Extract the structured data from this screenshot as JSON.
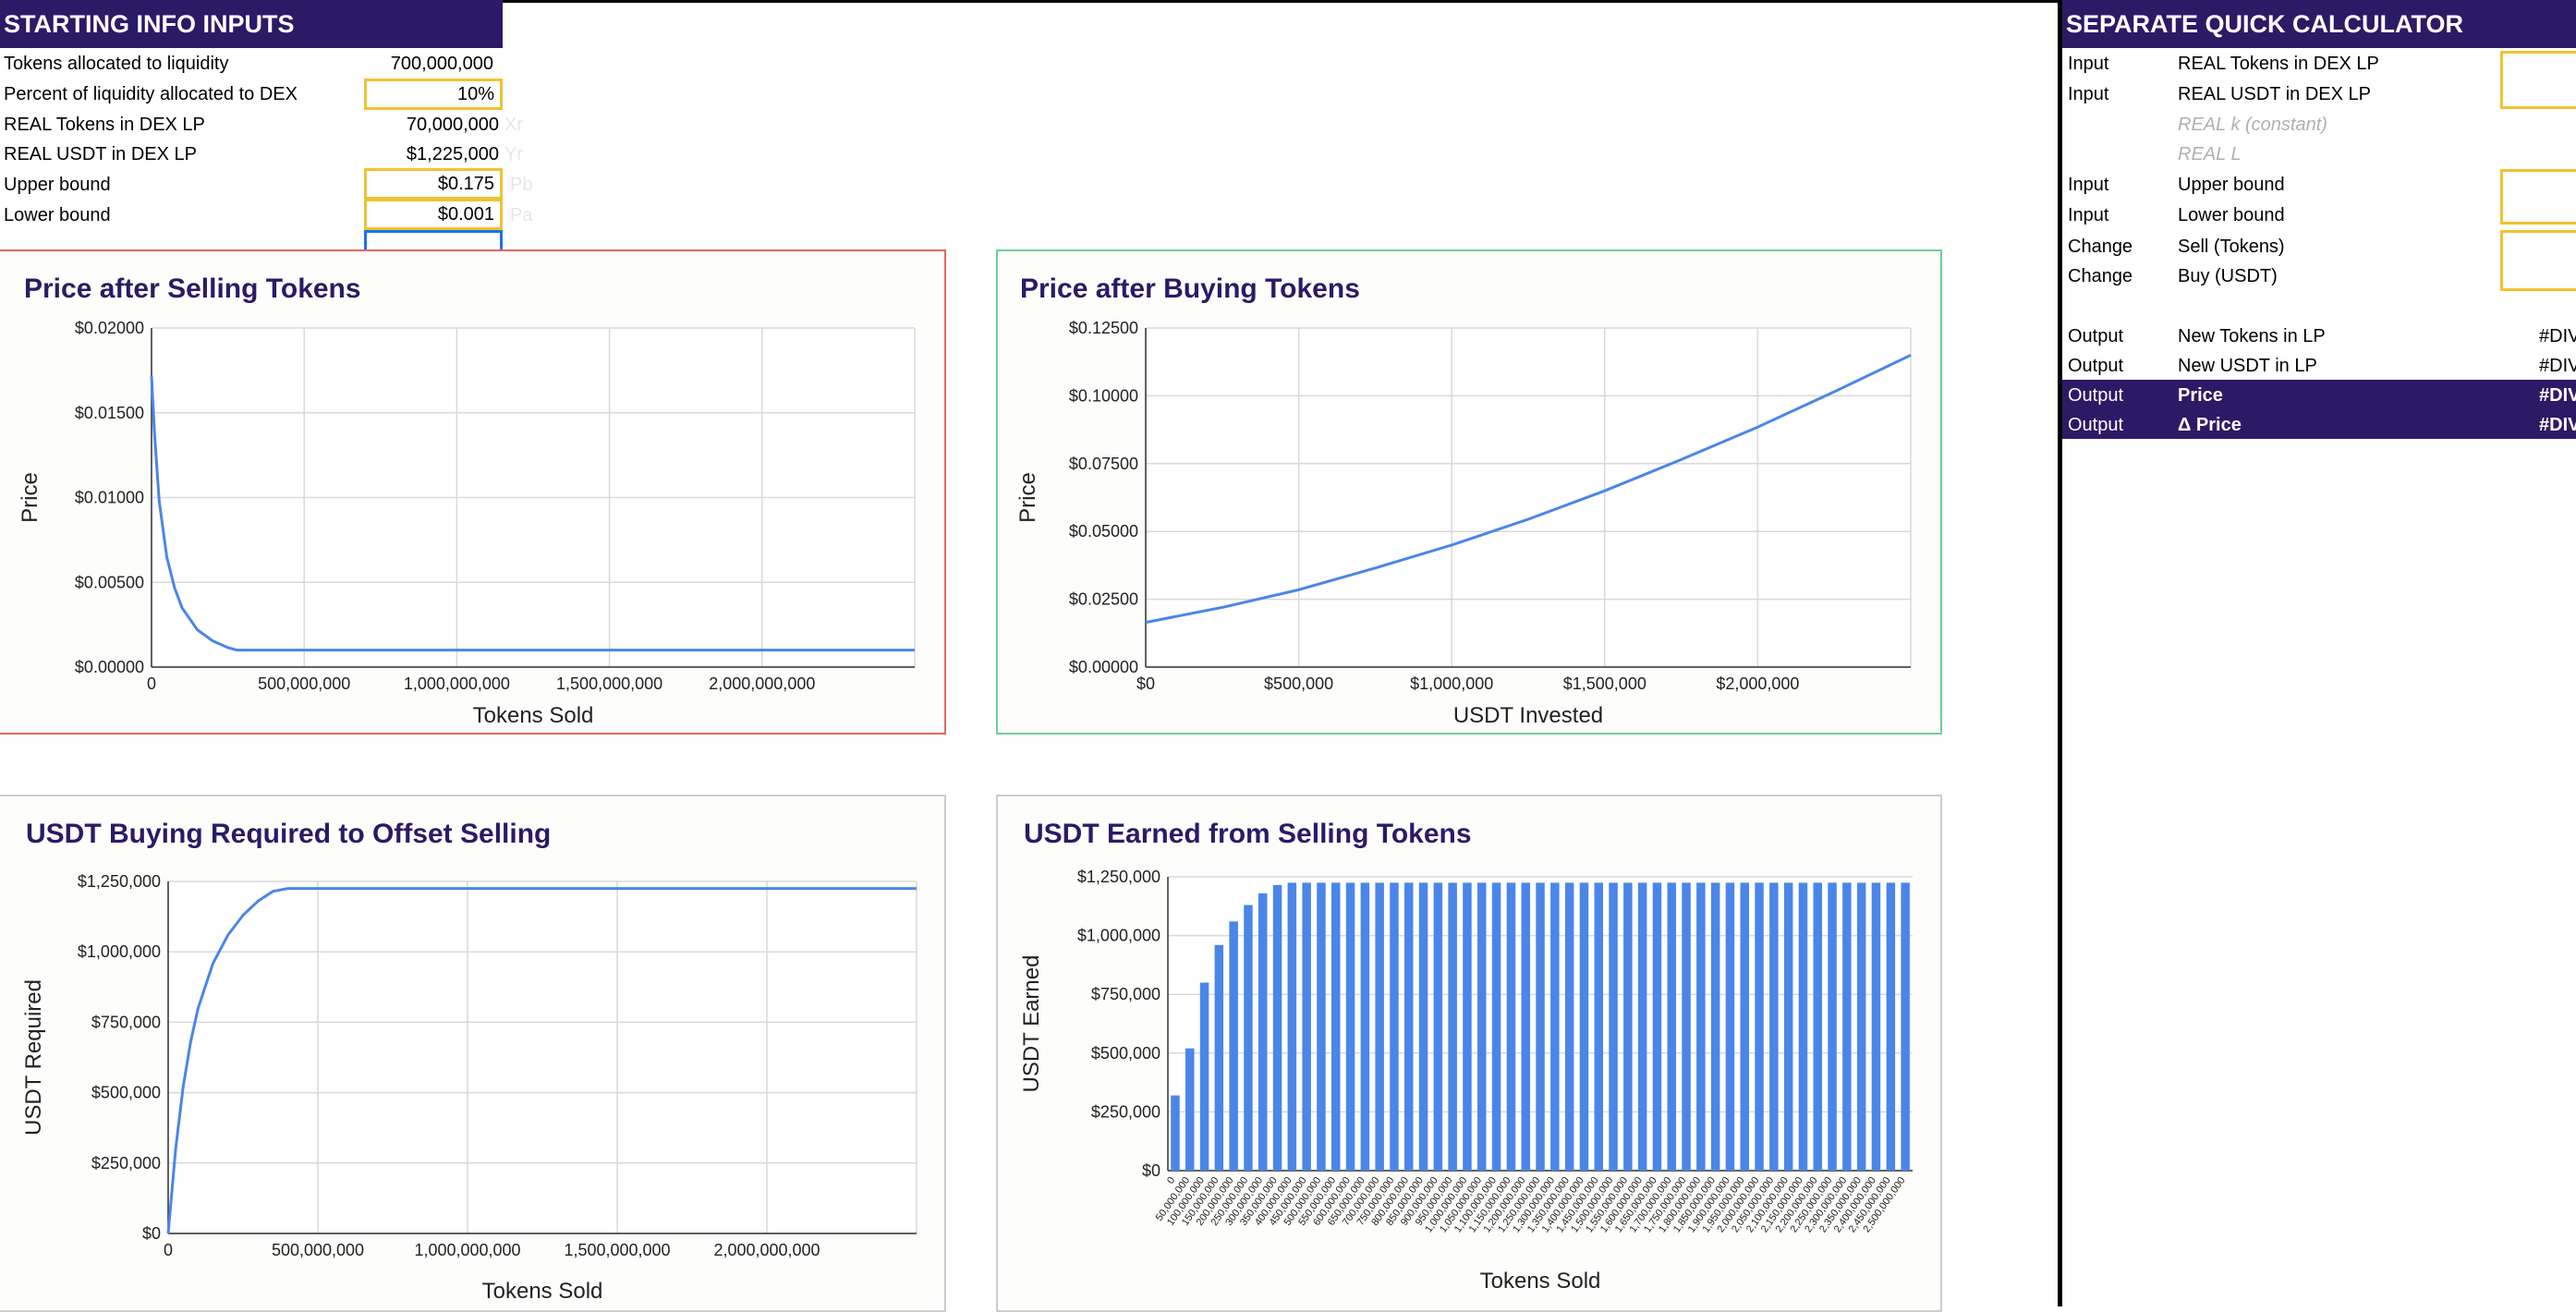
{
  "left_panel": {
    "title": "STARTING INFO INPUTS",
    "rows": [
      {
        "label": "Tokens allocated to liquidity",
        "value": "700,000,000",
        "tag": ""
      },
      {
        "label": "Percent of liquidity allocated to DEX",
        "value": "10%",
        "tag": ""
      },
      {
        "label": "REAL Tokens in DEX LP",
        "value": "70,000,000",
        "tag": "Xr"
      },
      {
        "label": "REAL USDT in DEX LP",
        "value": "$1,225,000",
        "tag": "Yr"
      },
      {
        "label": "Upper bound",
        "value": "$0.175",
        "tag": "Pb"
      },
      {
        "label": "Lower bound",
        "value": "$0.001",
        "tag": "Pa"
      }
    ]
  },
  "right_panel": {
    "title": "SEPARATE QUICK CALCULATOR",
    "rows": [
      {
        "type": "Input",
        "label": "REAL Tokens in DEX LP",
        "value": ""
      },
      {
        "type": "Input",
        "label": "REAL USDT in DEX LP",
        "value": ""
      },
      {
        "type": "",
        "label": "REAL k (constant)",
        "value": ""
      },
      {
        "type": "",
        "label": "REAL L",
        "value": ""
      },
      {
        "type": "Input",
        "label": "Upper bound",
        "value": ""
      },
      {
        "type": "Input",
        "label": "Lower bound",
        "value": ""
      },
      {
        "type": "Change",
        "label": "Sell (Tokens)",
        "value": ""
      },
      {
        "type": "Change",
        "label": "Buy (USDT)",
        "value": ""
      },
      {
        "type": "Output",
        "label": "New Tokens in LP",
        "value": "#DIV"
      },
      {
        "type": "Output",
        "label": "New USDT in LP",
        "value": "#DIV"
      },
      {
        "type": "Output",
        "label": "Price",
        "value": "#DIV"
      },
      {
        "type": "Output",
        "label": "Δ  Price",
        "value": "#DIV"
      }
    ]
  },
  "colors": {
    "header_bg": "#2c1a66",
    "input_border": "#f1c232",
    "line": "#4a86e8",
    "chart1_border": "#e06666",
    "chart2_border": "#6ccf9a"
  },
  "chart_data": [
    {
      "type": "line",
      "title": "Price after Selling Tokens",
      "xlabel": "Tokens Sold",
      "ylabel": "Price",
      "xlim": [
        0,
        2500000000
      ],
      "ylim": [
        0,
        0.02
      ],
      "x_ticks": [
        0,
        500000000,
        1000000000,
        1500000000,
        2000000000
      ],
      "x_tick_labels": [
        "0",
        "500,000,000",
        "1,000,000,000",
        "1,500,000,000",
        "2,000,000,000"
      ],
      "y_ticks": [
        0,
        0.005,
        0.01,
        0.015,
        0.02
      ],
      "y_tick_labels": [
        "$0.00000",
        "$0.00500",
        "$0.01000",
        "$0.01500",
        "$0.02000"
      ],
      "x": [
        0,
        10000000,
        25000000,
        50000000,
        75000000,
        100000000,
        150000000,
        200000000,
        250000000,
        280000000,
        500000000,
        1000000000,
        1500000000,
        2000000000,
        2500000000
      ],
      "y": [
        0.0172,
        0.0137,
        0.0098,
        0.0065,
        0.0047,
        0.0035,
        0.0022,
        0.00155,
        0.00115,
        0.001,
        0.001,
        0.001,
        0.001,
        0.001,
        0.001
      ],
      "grid": true
    },
    {
      "type": "line",
      "title": "Price after Buying Tokens",
      "xlabel": "USDT Invested",
      "ylabel": "Price",
      "xlim": [
        0,
        2500000
      ],
      "ylim": [
        0,
        0.125
      ],
      "x_ticks": [
        0,
        500000,
        1000000,
        1500000,
        2000000
      ],
      "x_tick_labels": [
        "$0",
        "$500,000",
        "$1,000,000",
        "$1,500,000",
        "$2,000,000"
      ],
      "y_ticks": [
        0,
        0.025,
        0.05,
        0.075,
        0.1,
        0.125
      ],
      "y_tick_labels": [
        "$0.00000",
        "$0.02500",
        "$0.05000",
        "$0.07500",
        "$0.10000",
        "$0.12500"
      ],
      "x": [
        0,
        250000,
        500000,
        750000,
        1000000,
        1250000,
        1500000,
        1750000,
        2000000,
        2250000,
        2500000
      ],
      "y": [
        0.0165,
        0.022,
        0.0285,
        0.0365,
        0.045,
        0.0545,
        0.065,
        0.0765,
        0.0885,
        0.1015,
        0.115
      ],
      "grid": true
    },
    {
      "type": "line",
      "title": "USDT Buying Required to Offset Selling",
      "xlabel": "Tokens Sold",
      "ylabel": "USDT Required",
      "xlim": [
        0,
        2500000000
      ],
      "ylim": [
        0,
        1250000
      ],
      "x_ticks": [
        0,
        500000000,
        1000000000,
        1500000000,
        2000000000
      ],
      "x_tick_labels": [
        "0",
        "500,000,000",
        "1,000,000,000",
        "1,500,000,000",
        "2,000,000,000"
      ],
      "y_ticks": [
        0,
        250000,
        500000,
        750000,
        1000000,
        1250000
      ],
      "y_tick_labels": [
        "$0",
        "$250,000",
        "$500,000",
        "$750,000",
        "$1,000,000",
        "$1,250,000"
      ],
      "x": [
        0,
        25000000,
        50000000,
        75000000,
        100000000,
        150000000,
        200000000,
        250000000,
        300000000,
        350000000,
        400000000,
        2500000000
      ],
      "y": [
        0,
        300000,
        520000,
        680000,
        800000,
        960000,
        1060000,
        1130000,
        1180000,
        1215000,
        1225000,
        1225000
      ],
      "grid": true
    },
    {
      "type": "bar",
      "title": "USDT Earned from Selling Tokens",
      "xlabel": "Tokens Sold",
      "ylabel": "USDT Earned",
      "ylim": [
        0,
        1250000
      ],
      "y_ticks": [
        0,
        250000,
        500000,
        750000,
        1000000,
        1250000
      ],
      "y_tick_labels": [
        "$0",
        "$250,000",
        "$500,000",
        "$750,000",
        "$1,000,000",
        "$1,250,000"
      ],
      "categories": [
        "0",
        "50,000,000",
        "100,000,000",
        "150,000,000",
        "200,000,000",
        "250,000,000",
        "300,000,000",
        "350,000,000",
        "400,000,000",
        "450,000,000",
        "500,000,000",
        "550,000,000",
        "600,000,000",
        "650,000,000",
        "700,000,000",
        "750,000,000",
        "800,000,000",
        "850,000,000",
        "900,000,000",
        "950,000,000",
        "1,000,000,000",
        "1,050,000,000",
        "1,100,000,000",
        "1,150,000,000",
        "1,200,000,000",
        "1,250,000,000",
        "1,300,000,000",
        "1,350,000,000",
        "1,400,000,000",
        "1,450,000,000",
        "1,500,000,000",
        "1,550,000,000",
        "1,600,000,000",
        "1,650,000,000",
        "1,700,000,000",
        "1,750,000,000",
        "1,800,000,000",
        "1,850,000,000",
        "1,900,000,000",
        "1,950,000,000",
        "2,000,000,000",
        "2,050,000,000",
        "2,100,000,000",
        "2,150,000,000",
        "2,200,000,000",
        "2,250,000,000",
        "2,300,000,000",
        "2,350,000,000",
        "2,400,000,000",
        "2,450,000,000",
        "2,500,000,000"
      ],
      "grid": true
    }
  ]
}
